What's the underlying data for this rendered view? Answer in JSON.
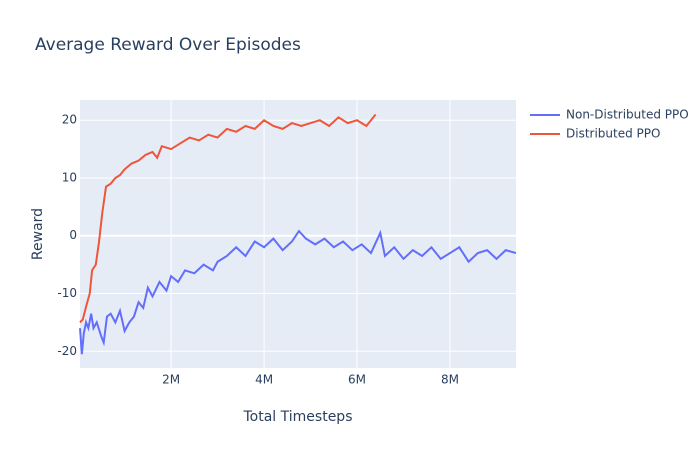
{
  "chart_data": {
    "type": "line",
    "title": "Average Reward Over Episodes",
    "x_label": "Total Timesteps",
    "y_label": "Reward",
    "xlim": [
      40000,
      9420000
    ],
    "ylim": [
      -22.9,
      23.5
    ],
    "xticks": [
      {
        "value": 2000000,
        "label": "2M"
      },
      {
        "value": 4000000,
        "label": "4M"
      },
      {
        "value": 6000000,
        "label": "6M"
      },
      {
        "value": 8000000,
        "label": "8M"
      }
    ],
    "yticks": [
      -20,
      -10,
      0,
      10,
      20
    ],
    "grid": true,
    "legend": "right",
    "series": [
      {
        "name": "Non-Distributed PPO",
        "color": "#636efa",
        "x": [
          40000,
          80000,
          120000,
          170000,
          220000,
          280000,
          330000,
          400000,
          500000,
          550000,
          620000,
          700000,
          800000,
          900000,
          1000000,
          1100000,
          1200000,
          1300000,
          1400000,
          1500000,
          1600000,
          1750000,
          1900000,
          2000000,
          2150000,
          2300000,
          2500000,
          2700000,
          2900000,
          3000000,
          3200000,
          3400000,
          3600000,
          3800000,
          4000000,
          4200000,
          4400000,
          4600000,
          4750000,
          4900000,
          5100000,
          5300000,
          5500000,
          5700000,
          5900000,
          6100000,
          6300000,
          6500000,
          6600000,
          6800000,
          7000000,
          7200000,
          7400000,
          7600000,
          7800000,
          8000000,
          8200000,
          8400000,
          8600000,
          8800000,
          9000000,
          9200000,
          9420000
        ],
        "values": [
          -16,
          -20.5,
          -17,
          -15,
          -16,
          -13.5,
          -16,
          -15,
          -17.5,
          -18.5,
          -14,
          -13.5,
          -15,
          -13,
          -16.5,
          -15,
          -14,
          -11.5,
          -12.5,
          -9,
          -10.5,
          -8,
          -9.5,
          -7,
          -8,
          -6,
          -6.5,
          -5,
          -6,
          -4.5,
          -3.5,
          -2,
          -3.5,
          -1,
          -2,
          -0.5,
          -2.5,
          -1,
          0.8,
          -0.5,
          -1.5,
          -0.5,
          -2,
          -1,
          -2.5,
          -1.5,
          -3,
          0.5,
          -3.5,
          -2,
          -4,
          -2.5,
          -3.5,
          -2,
          -4,
          -3,
          -2,
          -4.5,
          -3,
          -2.5,
          -4,
          -2.5,
          -3
        ]
      },
      {
        "name": "Distributed PPO",
        "color": "#ef553b",
        "x": [
          40000,
          100000,
          180000,
          250000,
          300000,
          380000,
          450000,
          520000,
          600000,
          700000,
          800000,
          900000,
          1000000,
          1150000,
          1300000,
          1450000,
          1600000,
          1700000,
          1800000,
          2000000,
          2200000,
          2400000,
          2600000,
          2800000,
          3000000,
          3200000,
          3400000,
          3600000,
          3800000,
          4000000,
          4200000,
          4400000,
          4600000,
          4800000,
          5000000,
          5200000,
          5400000,
          5600000,
          5800000,
          6000000,
          6200000,
          6300000,
          6400000
        ],
        "values": [
          -15,
          -14.5,
          -12,
          -10,
          -6,
          -5,
          -1,
          4,
          8.5,
          9,
          10,
          10.5,
          11.5,
          12.5,
          13,
          14,
          14.5,
          13.5,
          15.5,
          15,
          16,
          17,
          16.5,
          17.5,
          17,
          18.5,
          18,
          19,
          18.5,
          20,
          19,
          18.5,
          19.5,
          19,
          19.5,
          20,
          19,
          20.5,
          19.5,
          20,
          19,
          20,
          21
        ]
      }
    ]
  }
}
